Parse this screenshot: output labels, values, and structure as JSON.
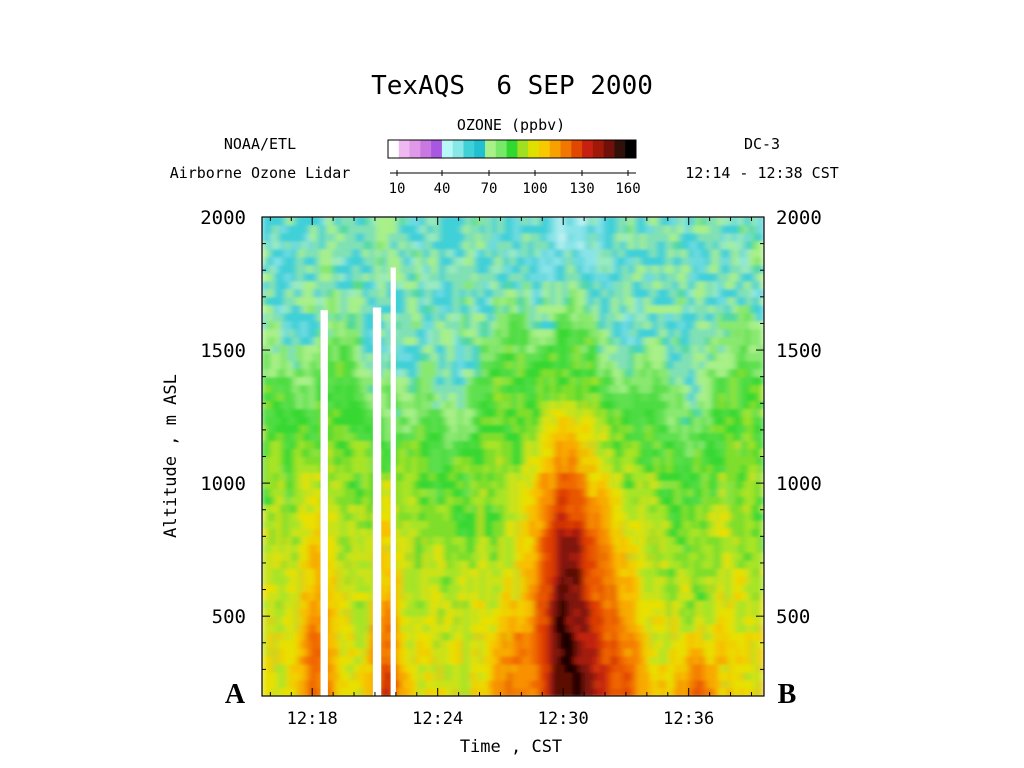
{
  "chart_data": {
    "type": "heatmap",
    "title": "TexAQS  6 SEP 2000",
    "colorbar": {
      "label": "OZONE (ppbv)",
      "ticks": [
        "10",
        "40",
        "70",
        "100",
        "130",
        "160"
      ],
      "range": [
        10,
        160
      ],
      "colors": [
        "#ffffff",
        "#f0b8f0",
        "#e098e8",
        "#c878e0",
        "#a858e0",
        "#b8f8f8",
        "#88e8e8",
        "#40d0d8",
        "#20c0d0",
        "#a8f088",
        "#78e868",
        "#30d830",
        "#a0e020",
        "#e0e000",
        "#f8c800",
        "#f8a000",
        "#f07800",
        "#e04800",
        "#c82010",
        "#a01808",
        "#701008",
        "#301008",
        "#000000"
      ]
    },
    "annotations": {
      "left_top": "NOAA/ETL",
      "left_bottom": "Airborne Ozone Lidar",
      "right_top": "DC-3",
      "right_bottom": "12:14 - 12:38 CST",
      "point_a": "A",
      "point_b": "B"
    },
    "xlabel": "Time , CST",
    "ylabel": "Altitude , m ASL",
    "x_ticks": [
      "12:18",
      "12:24",
      "12:30",
      "12:36"
    ],
    "x_tick_values": [
      1098,
      1104,
      1110,
      1116
    ],
    "xlim": [
      1095.6,
      1119.6
    ],
    "y_ticks": [
      "500",
      "1000",
      "1500",
      "2000"
    ],
    "y_tick_values": [
      500,
      1000,
      1500,
      2000
    ],
    "ylim": [
      200,
      2000
    ],
    "gaps": [
      {
        "x": [
          1098.4,
          1098.75
        ],
        "y_top": 1650
      },
      {
        "x": [
          1098.45,
          1098.6
        ],
        "y_top": 1370
      },
      {
        "x": [
          1100.9,
          1101.3
        ],
        "y_top": 1660
      },
      {
        "x": [
          1101.75,
          1102.0
        ],
        "y_top": 1810
      }
    ],
    "ozone_field_notes": "Background ~60-70 ppbv above 1500 m; 80-110 ppbv mid-levels; plumes >140 ppbv near 12:18-12:20 and 12:29-12:32 below 1000 m"
  }
}
